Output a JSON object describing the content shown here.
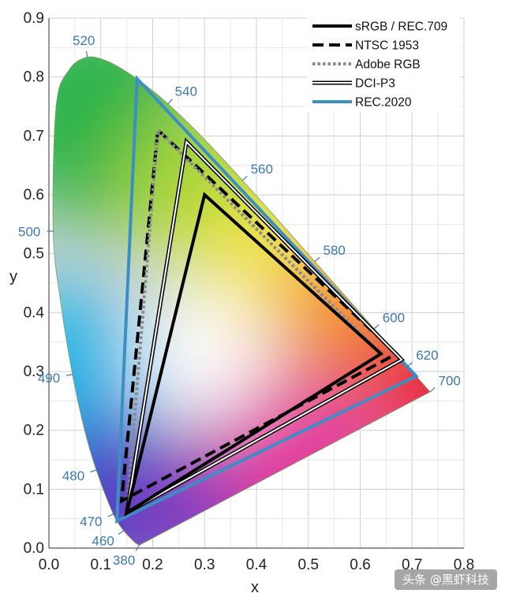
{
  "chart_data": {
    "type": "chromaticity-diagram",
    "xlabel": "x",
    "ylabel": "y",
    "xlim": [
      0.0,
      0.8
    ],
    "ylim": [
      0.0,
      0.9
    ],
    "x_ticks": [
      "0.0",
      "0.1",
      "0.2",
      "0.3",
      "0.4",
      "0.5",
      "0.6",
      "0.7",
      "0.8"
    ],
    "y_ticks": [
      "0.0",
      "0.1",
      "0.2",
      "0.3",
      "0.4",
      "0.5",
      "0.6",
      "0.7",
      "0.8",
      "0.9"
    ],
    "grid": true,
    "legend_position": "top-right",
    "spectral_locus": [
      [
        0.1741,
        0.005
      ],
      [
        0.1666,
        0.0089
      ],
      [
        0.1566,
        0.0177
      ],
      [
        0.144,
        0.0297
      ],
      [
        0.1241,
        0.0578
      ],
      [
        0.0913,
        0.1327
      ],
      [
        0.0687,
        0.2007
      ],
      [
        0.0454,
        0.295
      ],
      [
        0.0235,
        0.4127
      ],
      [
        0.0082,
        0.5384
      ],
      [
        0.0139,
        0.7502
      ],
      [
        0.0389,
        0.812
      ],
      [
        0.0743,
        0.8338
      ],
      [
        0.1142,
        0.8262
      ],
      [
        0.1547,
        0.8059
      ],
      [
        0.1929,
        0.7816
      ],
      [
        0.2296,
        0.7543
      ],
      [
        0.2658,
        0.7243
      ],
      [
        0.3016,
        0.6923
      ],
      [
        0.3373,
        0.6589
      ],
      [
        0.3731,
        0.6245
      ],
      [
        0.4087,
        0.5896
      ],
      [
        0.4441,
        0.5547
      ],
      [
        0.4788,
        0.5202
      ],
      [
        0.5125,
        0.4866
      ],
      [
        0.5448,
        0.4544
      ],
      [
        0.5752,
        0.4242
      ],
      [
        0.6029,
        0.3965
      ],
      [
        0.627,
        0.3725
      ],
      [
        0.6482,
        0.3514
      ],
      [
        0.6658,
        0.334
      ],
      [
        0.6915,
        0.3083
      ],
      [
        0.7347,
        0.2653
      ]
    ],
    "wavelength_labels": [
      {
        "text": "520",
        "x": 0.0743,
        "y": 0.8338
      },
      {
        "text": "540",
        "x": 0.2296,
        "y": 0.7543
      },
      {
        "text": "560",
        "x": 0.3731,
        "y": 0.6245
      },
      {
        "text": "580",
        "x": 0.5125,
        "y": 0.4866
      },
      {
        "text": "600",
        "x": 0.627,
        "y": 0.3725
      },
      {
        "text": "620",
        "x": 0.6915,
        "y": 0.3083
      },
      {
        "text": "700",
        "x": 0.7347,
        "y": 0.2653
      },
      {
        "text": "500",
        "x": 0.0082,
        "y": 0.5384
      },
      {
        "text": "490",
        "x": 0.0454,
        "y": 0.295
      },
      {
        "text": "480",
        "x": 0.0913,
        "y": 0.1327
      },
      {
        "text": "470",
        "x": 0.1241,
        "y": 0.0578
      },
      {
        "text": "460",
        "x": 0.144,
        "y": 0.0297
      },
      {
        "text": "380",
        "x": 0.1741,
        "y": 0.005
      }
    ],
    "series": [
      {
        "name": "sRGB / REC.709",
        "style": "solid",
        "color": "#000000",
        "points": [
          [
            0.64,
            0.33
          ],
          [
            0.3,
            0.6
          ],
          [
            0.15,
            0.06
          ]
        ]
      },
      {
        "name": "NTSC 1953",
        "style": "dashed",
        "color": "#000000",
        "points": [
          [
            0.67,
            0.33
          ],
          [
            0.21,
            0.71
          ],
          [
            0.14,
            0.08
          ]
        ]
      },
      {
        "name": "Adobe RGB",
        "style": "dotted",
        "color": "#8a8a8a",
        "points": [
          [
            0.64,
            0.33
          ],
          [
            0.21,
            0.71
          ],
          [
            0.15,
            0.06
          ]
        ]
      },
      {
        "name": "DCI-P3",
        "style": "double",
        "color": "#000000",
        "points": [
          [
            0.68,
            0.32
          ],
          [
            0.265,
            0.69
          ],
          [
            0.15,
            0.06
          ]
        ]
      },
      {
        "name": "REC.2020",
        "style": "solid",
        "color": "#3b8fc4",
        "points": [
          [
            0.708,
            0.292
          ],
          [
            0.17,
            0.797
          ],
          [
            0.131,
            0.046
          ]
        ]
      }
    ]
  },
  "watermark": "头条 @黑虾科技"
}
